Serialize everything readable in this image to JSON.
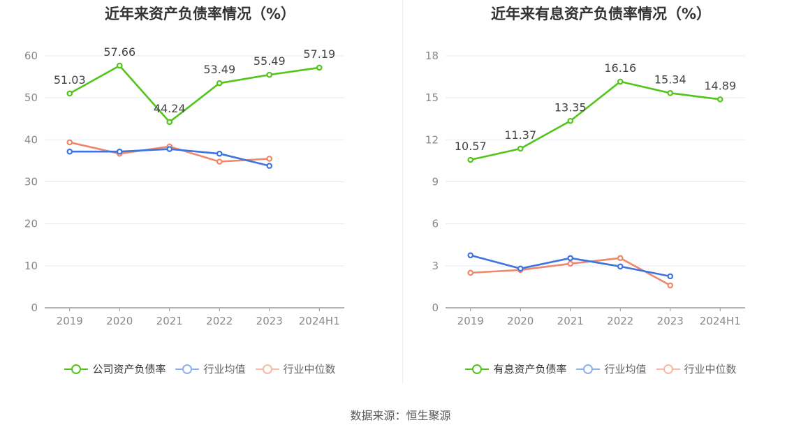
{
  "source_label": "数据来源：恒生聚源",
  "colors": {
    "green": "#52c41a",
    "blue": "#3e74e0",
    "orange": "#f0876a",
    "legend_blue": "#8fb0ef",
    "legend_orange": "#f6b9a6"
  },
  "chart_data": [
    {
      "type": "line",
      "title": "近年来资产负债率情况（%）",
      "categories": [
        "2019",
        "2020",
        "2021",
        "2022",
        "2023",
        "2024H1"
      ],
      "ylim": [
        0,
        60
      ],
      "yticks": [
        0,
        10,
        20,
        30,
        40,
        50,
        60
      ],
      "grid": true,
      "legend_position": "bottom",
      "series": [
        {
          "name": "公司资产负债率",
          "color": "#52c41a",
          "values": [
            51.03,
            57.66,
            44.24,
            53.49,
            55.49,
            57.19
          ],
          "labels": true
        },
        {
          "name": "行业均值",
          "color": "#3e74e0",
          "values": [
            37.2,
            37.2,
            37.8,
            36.7,
            33.8,
            null
          ],
          "labels": false
        },
        {
          "name": "行业中位数",
          "color": "#f0876a",
          "values": [
            39.4,
            36.7,
            38.4,
            34.8,
            35.5,
            null
          ],
          "labels": false
        }
      ]
    },
    {
      "type": "line",
      "title": "近年来有息资产负债率情况（%）",
      "categories": [
        "2019",
        "2020",
        "2021",
        "2022",
        "2023",
        "2024H1"
      ],
      "ylim": [
        0,
        18
      ],
      "yticks": [
        0,
        3,
        6,
        9,
        12,
        15,
        18
      ],
      "grid": true,
      "legend_position": "bottom",
      "series": [
        {
          "name": "有息资产负债率",
          "color": "#52c41a",
          "values": [
            10.57,
            11.37,
            13.35,
            16.16,
            15.34,
            14.89
          ],
          "labels": true
        },
        {
          "name": "行业均值",
          "color": "#3e74e0",
          "values": [
            3.75,
            2.8,
            3.55,
            2.95,
            2.25,
            null
          ],
          "labels": false
        },
        {
          "name": "行业中位数",
          "color": "#f0876a",
          "values": [
            2.5,
            2.7,
            3.15,
            3.55,
            1.6,
            null
          ],
          "labels": false
        }
      ]
    }
  ]
}
